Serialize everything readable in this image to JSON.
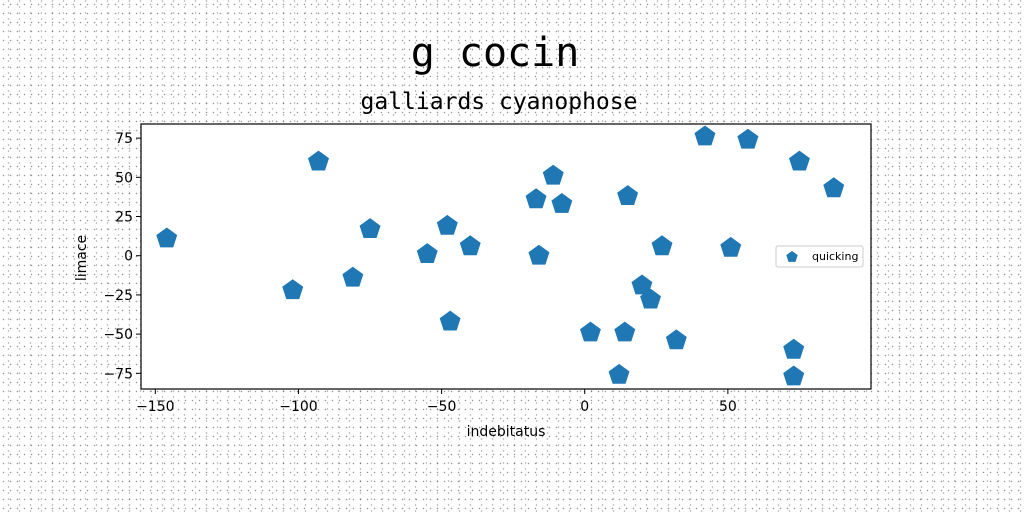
{
  "chart_data": {
    "type": "scatter",
    "title": "g cocin",
    "subtitle": "galliards cyanophose",
    "xlabel": "indebitatus",
    "ylabel": "limace",
    "xlim": [
      -155,
      100
    ],
    "ylim": [
      -85,
      84
    ],
    "xticks": [
      -150,
      -100,
      -50,
      0,
      50
    ],
    "yticks": [
      -75,
      -50,
      -25,
      0,
      25,
      50,
      75
    ],
    "grid": false,
    "legend_position": "right",
    "marker": "pentagon",
    "colors": {
      "series": "#1f77b4"
    },
    "series": [
      {
        "name": "quicking",
        "points": [
          [
            -146,
            11
          ],
          [
            -102,
            -22
          ],
          [
            -93,
            60
          ],
          [
            -81,
            -14
          ],
          [
            -75,
            17
          ],
          [
            -55,
            1
          ],
          [
            -48,
            19
          ],
          [
            -47,
            -42
          ],
          [
            -40,
            6
          ],
          [
            -17,
            36
          ],
          [
            -16,
            0
          ],
          [
            -11,
            51
          ],
          [
            -8,
            33
          ],
          [
            2,
            -49
          ],
          [
            12,
            -76
          ],
          [
            14,
            -49
          ],
          [
            15,
            38
          ],
          [
            20,
            -19
          ],
          [
            23,
            -28
          ],
          [
            27,
            6
          ],
          [
            32,
            -54
          ],
          [
            42,
            76
          ],
          [
            51,
            5
          ],
          [
            57,
            74
          ],
          [
            73,
            -60
          ],
          [
            73,
            -77
          ],
          [
            75,
            60
          ],
          [
            87,
            43
          ]
        ]
      }
    ]
  }
}
